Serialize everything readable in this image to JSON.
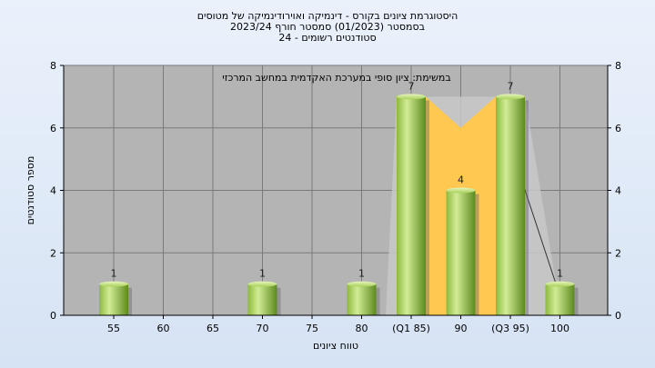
{
  "title_lines": [
    "היסטוגרמת ציונים בקורס - דינמיקה ואוירודינמיקה של מטוסים",
    "בסמסטר  (01/2023)  סמסטר חורף  2023/24",
    "סטודנטים רשומים - 24"
  ],
  "colors": {
    "plot_bg": "#b4b4b4",
    "bar_light": "#c8e68a",
    "bar_dark": "#6e9a2a",
    "median_band": "#ffc850",
    "iqr_area": "#c8c8c8",
    "grid": "#7a7a7a"
  },
  "chart_data": {
    "type": "bar",
    "annotation": "במשימת: ציון סופי במערכת האקדמית במחשב המרכזי",
    "xlabel": "טווח ציונים",
    "ylabel": "מספר סטודנטים",
    "categories": [
      "55",
      "60",
      "65",
      "70",
      "75",
      "80",
      "(Q1 85)",
      "90",
      "(Q3 95)",
      "100"
    ],
    "values": [
      1,
      0,
      0,
      1,
      0,
      1,
      7,
      4,
      7,
      1
    ],
    "data_labels": [
      "1",
      "",
      "",
      "1",
      "",
      "1",
      "7",
      "4",
      "7",
      "1"
    ],
    "ylim": [
      0,
      8
    ],
    "yticks": [
      "0",
      "2",
      "4",
      "6",
      "8"
    ],
    "grid": true,
    "secondary_y_axis": true
  }
}
